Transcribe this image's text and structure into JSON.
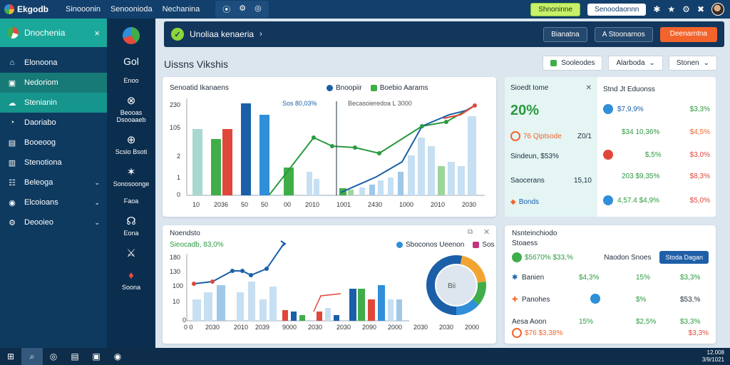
{
  "topbar": {
    "brand": "Ekgodb",
    "nav": [
      "Sinooonin",
      "Senoonioda",
      "Nechanina"
    ],
    "icons": [
      "⦿",
      "⚙",
      "◎"
    ],
    "green_pill": "Shnoninne",
    "white_pill": "Senoodaonnn",
    "glyphs": [
      "✱",
      "★",
      "⚙",
      "✖"
    ]
  },
  "sidebar": {
    "header": "Dnochenia",
    "close": "×",
    "items": [
      {
        "icon": "⌂",
        "label": "Elonoona",
        "chevron": ""
      },
      {
        "icon": "▣",
        "label": "Nedoriom",
        "chevron": ""
      },
      {
        "icon": "☁",
        "label": "Stenianin",
        "chevron": ""
      },
      {
        "icon": "◔",
        "label": "Daoriabo",
        "chevron": ""
      },
      {
        "icon": "▤",
        "label": "Booeoog",
        "chevron": ""
      },
      {
        "icon": "▥",
        "label": "Stenotiona",
        "chevron": ""
      },
      {
        "icon": "☷",
        "label": "Beleoga",
        "chevron": "⌄"
      },
      {
        "icon": "◉",
        "label": "Elcoioans",
        "chevron": "⌄"
      },
      {
        "icon": "⚙",
        "label": "Deooieo",
        "chevron": "⌄"
      }
    ]
  },
  "rail": {
    "num": "Gol",
    "label1": "Enoo",
    "item1": "Beooas Dsooaaeb",
    "item2": "Scsio Bsoti",
    "item3": "Sonosoonge",
    "label2": "Faoa",
    "item4": "Eona",
    "item5": "Soona"
  },
  "header": {
    "logo_text": "✓",
    "title": "Unoliaa kenaeria",
    "chevron": "›",
    "btn1": "Bianatna",
    "btn2": "A Stoonarnos",
    "btn3": "Deenarntna"
  },
  "page": {
    "title": "Uissns Vikshis",
    "filter1": "Sooleodes",
    "filter2": "Alarboda",
    "filter3": "Stonen"
  },
  "chart1": {
    "title": "Senoatid Ikanaens",
    "legend": [
      "Bnoopiir",
      "Boebio Aarams"
    ],
    "annot1": "Sos 80,03%",
    "annot2": "Becasoieredoa L 3000"
  },
  "chart2": {
    "title": "Noendsto",
    "subtitle": "Sieocadb, 83,0%",
    "legend": [
      "Sboconos Ueenon",
      "Sos"
    ],
    "donut_label": "Bii"
  },
  "right_panel": {
    "title": "Sioedt Iome",
    "big": "20%",
    "row1": "76 Qiptsode",
    "row1_val": "Z0/1",
    "row2": "Sindeun, $53%",
    "row3": "Saocerans",
    "row3_val": "15,10",
    "row4": "Bonds",
    "col_title": "Stnd Jt Eduonss",
    "rows": [
      {
        "a": "$7,9,9%",
        "b": "$3,3%"
      },
      {
        "a": "$34 10,36%",
        "b": "$4,5%"
      },
      {
        "a": "$,5%",
        "b": "$3,0%"
      },
      {
        "a": "203 $9,35%",
        "b": "$8,3%"
      },
      {
        "a": "4,57.4 $4,9%",
        "b": "$5,0%"
      }
    ]
  },
  "table": {
    "title": "Nsnteinchiodo",
    "subtitle": "Stoaess",
    "row1_label": "$5670% $33,%",
    "row1_mid": "Naodon Snoes",
    "row1_btn": "Stoda Dagan",
    "rows": [
      {
        "icon": "✱",
        "label": "Banien",
        "a": "$4,3%",
        "b": "15%",
        "c": "$3,3%"
      },
      {
        "icon": "✚",
        "label": "Panohes",
        "a": "",
        "b": "$%",
        "c": "$53,%"
      },
      {
        "icon": "",
        "label": "Aesa Aoon",
        "a": "15%",
        "b": "$2,5%",
        "c": "$3,3%"
      }
    ],
    "last_sub": "$76 $3,38%",
    "last_c2": "$3,3%"
  },
  "taskbar": {
    "clock": "12.008",
    "date": "3/9/1021"
  },
  "colors": {
    "accent": "#1aa89a",
    "navy": "#12365c",
    "green": "#3fae49",
    "red": "#e0473a",
    "blue": "#1a5fa8",
    "orange": "#f2642c"
  }
}
